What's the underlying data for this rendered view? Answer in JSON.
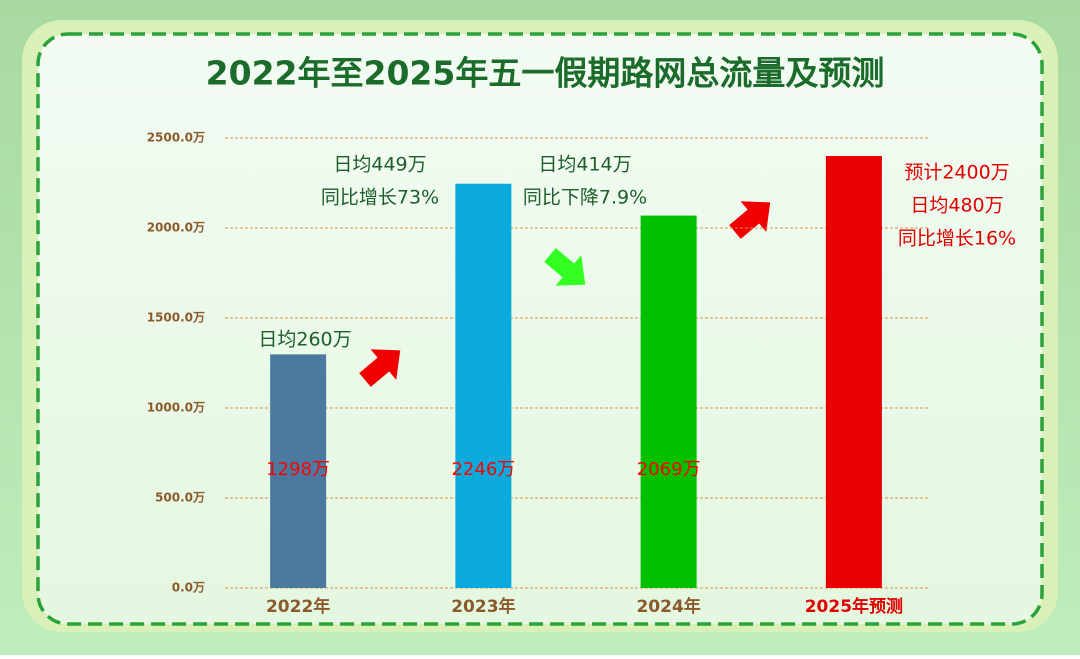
{
  "chart_data": {
    "type": "bar",
    "title": "2022年至2025年五一假期路网总流量及预测",
    "categories": [
      "2022年",
      "2023年",
      "2024年",
      "2025年预测"
    ],
    "category_colors": [
      "#8b5a2b",
      "#8b5a2b",
      "#8b5a2b",
      "#e00000"
    ],
    "values": [
      1298,
      2246,
      2069,
      2400
    ],
    "value_labels": [
      "1298万",
      "2246万",
      "2069万",
      null
    ],
    "colors": [
      "#4a7aa0",
      "#0aaadc",
      "#00c000",
      "#e80000"
    ],
    "ylim": [
      0,
      2500
    ],
    "yticks": [
      {
        "value": 0,
        "label": "0.0万"
      },
      {
        "value": 500,
        "label": "500.0万"
      },
      {
        "value": 1000,
        "label": "1000.0万"
      },
      {
        "value": 1500,
        "label": "1500.0万"
      },
      {
        "value": 2000,
        "label": "2000.0万"
      },
      {
        "value": 2500,
        "label": "2500.0万"
      }
    ],
    "grid": true,
    "annotations": [
      {
        "lines": [
          "日均260万"
        ],
        "color": "#1d5e2c"
      },
      {
        "lines": [
          "日均449万",
          "同比增长73%"
        ],
        "color": "#1d5e2c"
      },
      {
        "lines": [
          "日均414万",
          "同比下降7.9%"
        ],
        "color": "#1d5e2c"
      },
      {
        "lines": [
          "预计2400万",
          "日均480万",
          "同比增长16%"
        ],
        "color": "#e00000"
      }
    ]
  }
}
